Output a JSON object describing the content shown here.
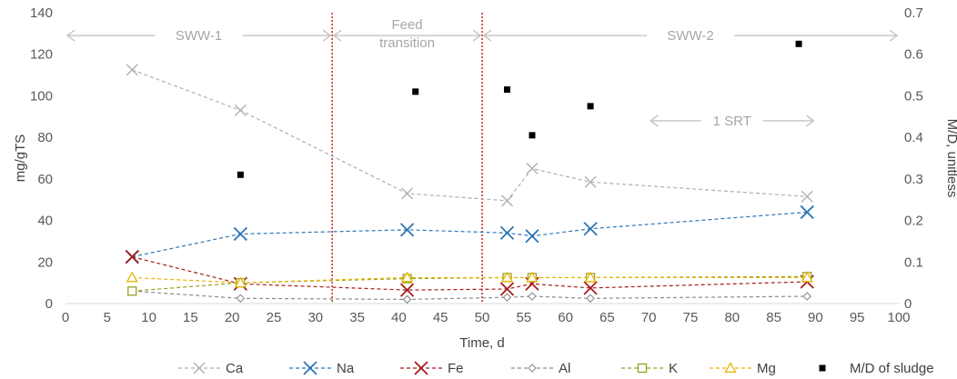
{
  "chart_data": {
    "type": "line",
    "xlabel": "Time, d",
    "ylabel": "mg/gTS",
    "y2label": "M/D, unitless",
    "xlim": [
      0,
      100
    ],
    "ylim": [
      0,
      140
    ],
    "y2lim": [
      0,
      0.7
    ],
    "xticks": [
      "0",
      "5",
      "10",
      "15",
      "20",
      "25",
      "30",
      "35",
      "40",
      "45",
      "50",
      "55",
      "60",
      "65",
      "70",
      "75",
      "80",
      "85",
      "90",
      "95",
      "100"
    ],
    "yticks": [
      "0",
      "20",
      "40",
      "60",
      "80",
      "100",
      "120",
      "140"
    ],
    "y2ticks": [
      "0",
      "0.1",
      "0.2",
      "0.3",
      "0.4",
      "0.5",
      "0.6",
      "0.7"
    ],
    "grid": false,
    "legend_position": "bottom",
    "series": [
      {
        "name": "Ca",
        "axis": "left",
        "color": "#b0b0b0",
        "marker": "x-small",
        "points": [
          [
            8,
            112.5
          ],
          [
            21,
            93
          ],
          [
            41,
            53
          ],
          [
            53,
            49.5
          ],
          [
            56,
            65
          ],
          [
            63,
            58.5
          ],
          [
            89,
            51.5
          ]
        ]
      },
      {
        "name": "Na",
        "axis": "left",
        "color": "#2e75b6",
        "marker": "x-large",
        "points": [
          [
            8,
            22.5
          ],
          [
            21,
            33.5
          ],
          [
            41,
            35.5
          ],
          [
            53,
            34
          ],
          [
            56,
            32.5
          ],
          [
            63,
            36
          ],
          [
            89,
            44
          ]
        ]
      },
      {
        "name": "Fe",
        "axis": "left",
        "color": "#a61c1c",
        "marker": "x-large",
        "points": [
          [
            8,
            22.5
          ],
          [
            21,
            9.5
          ],
          [
            41,
            6.5
          ],
          [
            53,
            7
          ],
          [
            56,
            9.5
          ],
          [
            63,
            7.5
          ],
          [
            89,
            10.5
          ]
        ]
      },
      {
        "name": "Al",
        "axis": "left",
        "color": "#8c8c8c",
        "marker": "diamond",
        "points": [
          [
            8,
            6
          ],
          [
            21,
            2.5
          ],
          [
            41,
            2
          ],
          [
            53,
            3
          ],
          [
            56,
            3.5
          ],
          [
            63,
            2.5
          ],
          [
            89,
            3.5
          ]
        ]
      },
      {
        "name": "K",
        "axis": "left",
        "color": "#9aa020",
        "marker": "square",
        "points": [
          [
            8,
            6
          ],
          [
            21,
            10
          ],
          [
            41,
            12
          ],
          [
            53,
            12.5
          ],
          [
            56,
            12.5
          ],
          [
            63,
            12.5
          ],
          [
            89,
            13
          ]
        ]
      },
      {
        "name": "Mg",
        "axis": "left",
        "color": "#e8b400",
        "marker": "triangle",
        "points": [
          [
            8,
            12.5
          ],
          [
            21,
            10
          ],
          [
            41,
            12.5
          ],
          [
            53,
            12.5
          ],
          [
            56,
            12.5
          ],
          [
            63,
            12.5
          ],
          [
            89,
            12.5
          ]
        ]
      },
      {
        "name": "M/D of sludge",
        "axis": "right",
        "color": "#000000",
        "marker": "filled-square",
        "points": [
          [
            21,
            0.31
          ],
          [
            42,
            0.51
          ],
          [
            53,
            0.515
          ],
          [
            56,
            0.405
          ],
          [
            63,
            0.475
          ],
          [
            88,
            0.625
          ]
        ]
      }
    ],
    "vertical_lines": [
      {
        "x": 32,
        "color": "#c00000"
      },
      {
        "x": 50,
        "color": "#c00000"
      }
    ],
    "annotations": {
      "phase1": {
        "label": "SWW-1",
        "x_from": 0,
        "x_to": 32,
        "y": 129
      },
      "phase2": {
        "label_line1": "Feed",
        "label_line2": "transition",
        "x_from": 32,
        "x_to": 50,
        "y": 129
      },
      "phase3": {
        "label": "SWW-2",
        "x_from": 50,
        "x_to": 100,
        "y": 129
      },
      "srt": {
        "label": "1 SRT",
        "x_from": 70,
        "x_to": 90,
        "y": 88
      }
    }
  }
}
